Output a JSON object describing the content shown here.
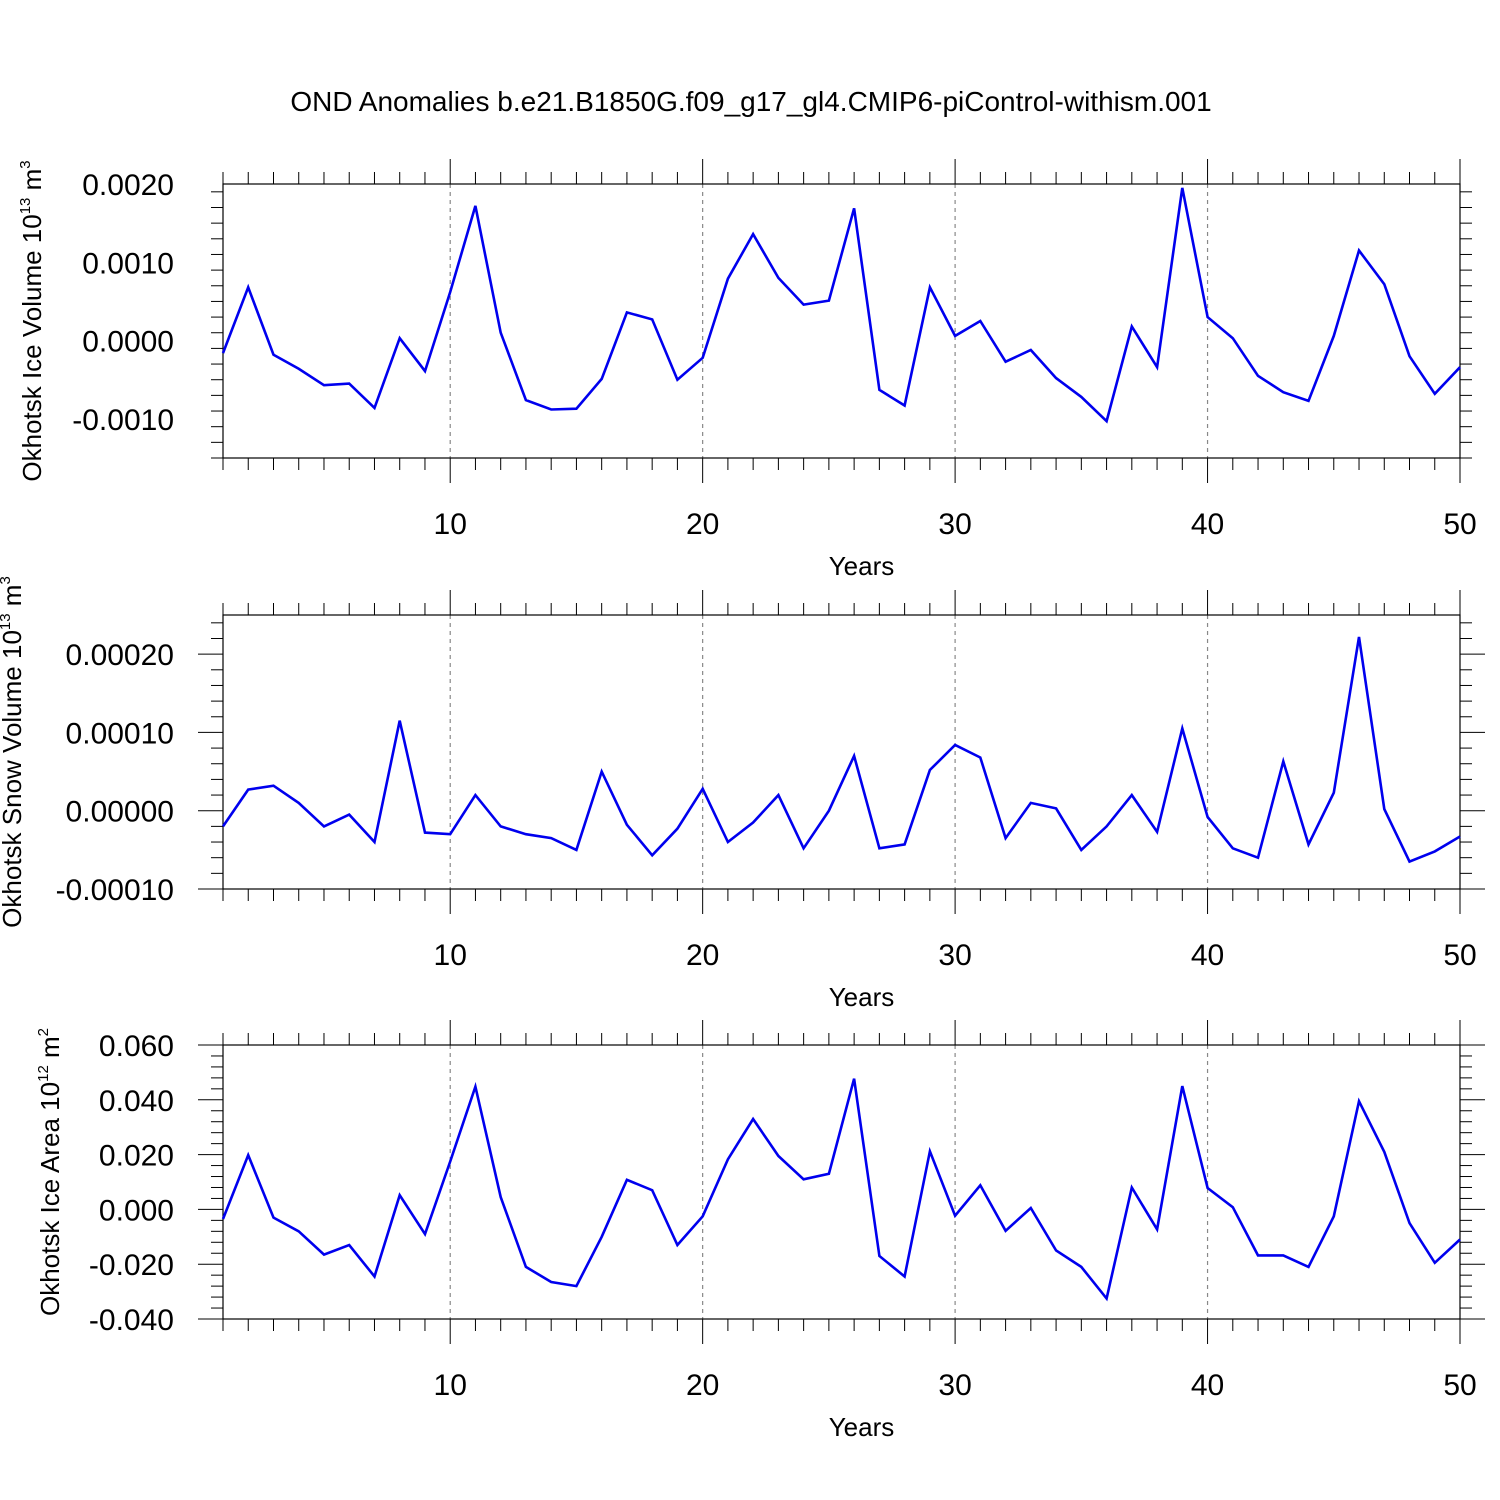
{
  "figure": {
    "title": "OND Anomalies b.e21.B1850G.f09_g17_gl4.CMIP6-piControl-withism.001",
    "line_color": "#0000ee"
  },
  "chart_data": [
    {
      "type": "line",
      "xlabel": "Years",
      "ylabel_text": "Okhotsk Ice Volume 10",
      "ylabel_exp": "13",
      "ylabel_unit": " m",
      "ylabel_unit_exp": "3",
      "xlim": [
        1,
        50
      ],
      "ylim": [
        -0.0015,
        0.002
      ],
      "xticks": [
        10,
        20,
        30,
        40,
        50
      ],
      "xtick_labels": [
        "10",
        "20",
        "30",
        "40",
        "50"
      ],
      "yticks": [
        0.002,
        0.001,
        0.0,
        -0.001
      ],
      "ytick_labels": [
        "0.0020",
        "0.0010",
        "0.0000",
        "-0.0010"
      ],
      "grid_x": [
        10,
        20,
        30,
        40
      ],
      "x": [
        1,
        2,
        3,
        4,
        5,
        6,
        7,
        8,
        9,
        10,
        11,
        12,
        13,
        14,
        15,
        16,
        17,
        18,
        19,
        20,
        21,
        22,
        23,
        24,
        25,
        26,
        27,
        28,
        29,
        30,
        31,
        32,
        33,
        34,
        35,
        36,
        37,
        38,
        39,
        40,
        41,
        42,
        43,
        44,
        45,
        46,
        47,
        48,
        49,
        50
      ],
      "values": [
        -0.00016,
        0.00068,
        -0.00018,
        -0.00036,
        -0.00057,
        -0.00055,
        -0.00086,
        3e-05,
        -0.00039,
        0.00062,
        0.00172,
        0.0001,
        -0.00076,
        -0.00088,
        -0.00087,
        -0.00049,
        0.00036,
        0.00027,
        -0.0005,
        -0.00022,
        0.00079,
        0.00136,
        0.0008,
        0.00046,
        0.00051,
        0.00169,
        -0.00063,
        -0.00083,
        0.00068,
        6e-05,
        0.00025,
        -0.00027,
        -0.00012,
        -0.00048,
        -0.00072,
        -0.00103,
        0.00018,
        -0.00034,
        0.00195,
        0.0003,
        3e-05,
        -0.00045,
        -0.00066,
        -0.00077,
        6e-05,
        0.00115,
        0.00072,
        -0.0002,
        -0.00068,
        -0.00034
      ]
    },
    {
      "type": "line",
      "xlabel": "Years",
      "ylabel_text": "Okhotsk Snow Volume 10",
      "ylabel_exp": "13",
      "ylabel_unit": " m",
      "ylabel_unit_exp": "3",
      "xlim": [
        1,
        50
      ],
      "ylim": [
        -0.0001,
        0.00025
      ],
      "xticks": [
        10,
        20,
        30,
        40,
        50
      ],
      "xtick_labels": [
        "10",
        "20",
        "30",
        "40",
        "50"
      ],
      "yticks": [
        0.0002,
        0.0001,
        0.0,
        -0.0001
      ],
      "ytick_labels": [
        "0.00020",
        "0.00010",
        "0.00000",
        "-0.00010"
      ],
      "grid_x": [
        10,
        20,
        30,
        40
      ],
      "x": [
        1,
        2,
        3,
        4,
        5,
        6,
        7,
        8,
        9,
        10,
        11,
        12,
        13,
        14,
        15,
        16,
        17,
        18,
        19,
        20,
        21,
        22,
        23,
        24,
        25,
        26,
        27,
        28,
        29,
        30,
        31,
        32,
        33,
        34,
        35,
        36,
        37,
        38,
        39,
        40,
        41,
        42,
        43,
        44,
        45,
        46,
        47,
        48,
        49,
        50
      ],
      "values": [
        -2e-05,
        2.7e-05,
        3.2e-05,
        1e-05,
        -2e-05,
        -5e-06,
        -4e-05,
        0.000115,
        -2.8e-05,
        -3e-05,
        2e-05,
        -2e-05,
        -3e-05,
        -3.5e-05,
        -5e-05,
        5e-05,
        -1.8e-05,
        -5.7e-05,
        -2.3e-05,
        2.8e-05,
        -4e-05,
        -1.5e-05,
        2e-05,
        -4.8e-05,
        0.0,
        7e-05,
        -4.8e-05,
        -4.3e-05,
        5.2e-05,
        8.4e-05,
        6.8e-05,
        -3.5e-05,
        1e-05,
        3e-06,
        -5e-05,
        -2e-05,
        2e-05,
        -2.7e-05,
        0.000105,
        -8e-06,
        -4.8e-05,
        -6e-05,
        6.3e-05,
        -4.3e-05,
        2.3e-05,
        0.000222,
        2e-06,
        -6.5e-05,
        -5.2e-05,
        -3.3e-05
      ]
    },
    {
      "type": "line",
      "xlabel": "Years",
      "ylabel_text": "Okhotsk Ice Area 10",
      "ylabel_exp": "12",
      "ylabel_unit": " m",
      "ylabel_unit_exp": "2",
      "xlim": [
        1,
        50
      ],
      "ylim": [
        -0.04,
        0.06
      ],
      "xticks": [
        10,
        20,
        30,
        40,
        50
      ],
      "xtick_labels": [
        "10",
        "20",
        "30",
        "40",
        "50"
      ],
      "yticks": [
        0.06,
        0.04,
        0.02,
        0.0,
        -0.02,
        -0.04
      ],
      "ytick_labels": [
        "0.060",
        "0.040",
        "0.020",
        "0.000",
        "-0.020",
        "-0.040"
      ],
      "grid_x": [
        10,
        20,
        30,
        40
      ],
      "x": [
        1,
        2,
        3,
        4,
        5,
        6,
        7,
        8,
        9,
        10,
        11,
        12,
        13,
        14,
        15,
        16,
        17,
        18,
        19,
        20,
        21,
        22,
        23,
        24,
        25,
        26,
        27,
        28,
        29,
        30,
        31,
        32,
        33,
        34,
        35,
        36,
        37,
        38,
        39,
        40,
        41,
        42,
        43,
        44,
        45,
        46,
        47,
        48,
        49,
        50
      ],
      "values": [
        -0.0035,
        0.0198,
        -0.003,
        -0.008,
        -0.0165,
        -0.013,
        -0.0245,
        0.0052,
        -0.009,
        0.0175,
        0.0448,
        0.0045,
        -0.021,
        -0.0265,
        -0.028,
        -0.01,
        0.0108,
        0.007,
        -0.013,
        -0.0025,
        0.0183,
        0.033,
        0.0195,
        0.011,
        0.013,
        0.0477,
        -0.017,
        -0.0245,
        0.0212,
        -0.0023,
        0.0088,
        -0.0078,
        0.0005,
        -0.015,
        -0.021,
        -0.0325,
        0.008,
        -0.0073,
        0.045,
        0.0078,
        0.0008,
        -0.0168,
        -0.0168,
        -0.021,
        -0.0025,
        0.0395,
        0.021,
        -0.005,
        -0.0195,
        -0.011
      ]
    }
  ]
}
